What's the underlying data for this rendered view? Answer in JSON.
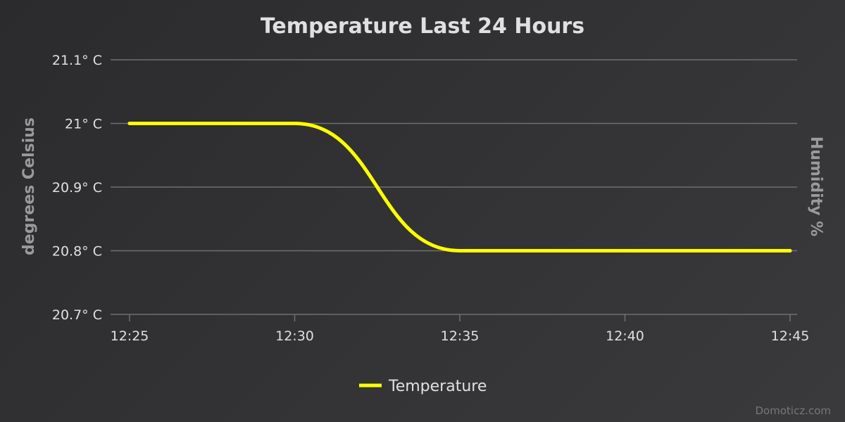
{
  "colors": {
    "background_start": "#2b2b2d",
    "background_end": "#3a3a3c",
    "title": "#e0e0e0",
    "axis_title": "#9a9a9a",
    "tick_label": "#e0e0e0",
    "gridline": "#6f6f6f",
    "series_temperature": "#ffff00",
    "legend_text": "#e0e0e0",
    "credits": "#777777"
  },
  "chart_data": {
    "type": "line",
    "title": "Temperature Last 24 Hours",
    "ylabel": "degrees Celsius",
    "ylabel_right": "Humidity %",
    "x": [
      "12:25",
      "12:30",
      "12:35",
      "12:40",
      "12:45"
    ],
    "x_ticks": [
      "12:25",
      "12:30",
      "12:35",
      "12:40",
      "12:45"
    ],
    "y_ticks": [
      "21.1° C",
      "21° C",
      "20.9° C",
      "20.8° C",
      "20.7° C"
    ],
    "ylim": [
      20.7,
      21.1
    ],
    "grid": true,
    "legend_position": "bottom-center",
    "series": [
      {
        "name": "Temperature",
        "points": [
          {
            "x": "12:25",
            "y": 21.0
          },
          {
            "x": "12:30",
            "y": 21.0
          },
          {
            "x": "12:35",
            "y": 20.8
          },
          {
            "x": "12:40",
            "y": 20.8
          },
          {
            "x": "12:45",
            "y": 20.8
          }
        ]
      }
    ]
  },
  "credits": "Domoticz.com"
}
